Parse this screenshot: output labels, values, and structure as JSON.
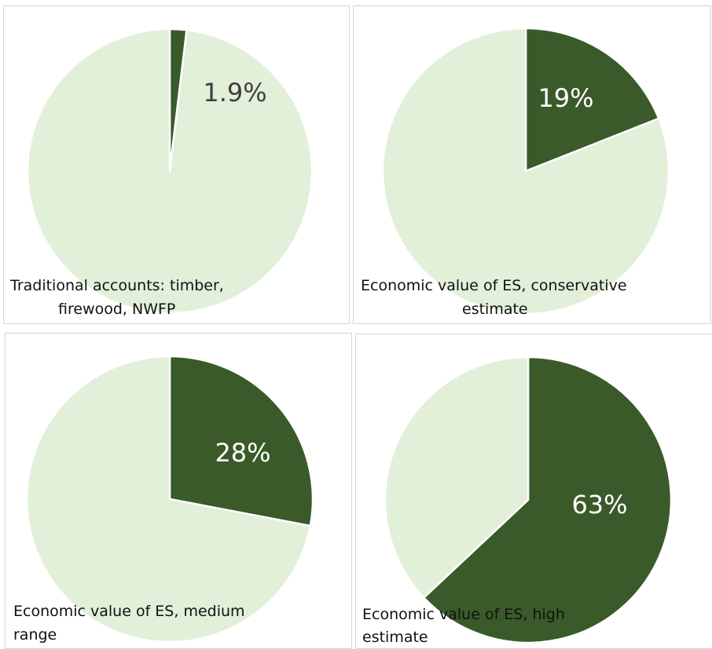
{
  "chart_data": [
    {
      "type": "pie",
      "slices": [
        {
          "label": "",
          "value": 1.9
        },
        {
          "label": "",
          "value": 98.1
        }
      ],
      "data_label": "1.9%",
      "caption_lines": [
        "Traditional accounts: timber,",
        "firewood, NWFP"
      ]
    },
    {
      "type": "pie",
      "slices": [
        {
          "label": "",
          "value": 19
        },
        {
          "label": "",
          "value": 81
        }
      ],
      "data_label": "19%",
      "caption_lines": [
        "Economic value of ES, conservative",
        "estimate"
      ]
    },
    {
      "type": "pie",
      "slices": [
        {
          "label": "",
          "value": 28
        },
        {
          "label": "",
          "value": 72
        }
      ],
      "data_label": "28%",
      "caption_lines": [
        "Economic value of ES, medium",
        "range"
      ]
    },
    {
      "type": "pie",
      "slices": [
        {
          "label": "",
          "value": 63
        },
        {
          "label": "",
          "value": 37
        }
      ],
      "data_label": "63%",
      "caption_lines": [
        "Economic value of ES, high",
        "estimate"
      ]
    }
  ],
  "colors": {
    "highlight": "#3b5a2a",
    "remainder": "#e2efd9",
    "slice_border": "#ffffff",
    "label_on_dark": "#ffffff",
    "label_on_light": "#404040"
  }
}
